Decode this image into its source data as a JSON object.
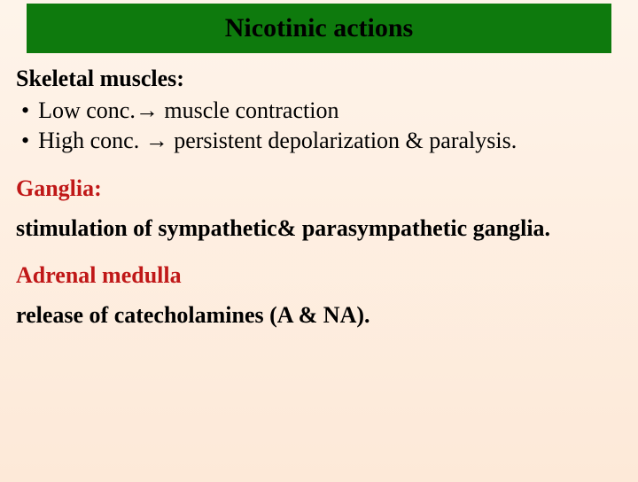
{
  "title": "Nicotinic actions",
  "skeletal": {
    "heading": "Skeletal muscles:",
    "bullet1_pre": "Low conc.",
    "bullet1_post": " muscle contraction",
    "bullet2_pre": "High conc. ",
    "bullet2_post": " persistent depolarization & paralysis."
  },
  "ganglia": {
    "heading": "Ganglia:",
    "text": "stimulation of sympathetic& parasympathetic ganglia."
  },
  "adrenal": {
    "heading": "Adrenal medulla",
    "text": "release of catecholamines (A & NA)."
  },
  "arrow": "→",
  "colors": {
    "title_bg": "#0e7a0d",
    "red": "#c01818",
    "bg_top": "#fef4ea",
    "bg_bottom": "#fde9d8"
  }
}
